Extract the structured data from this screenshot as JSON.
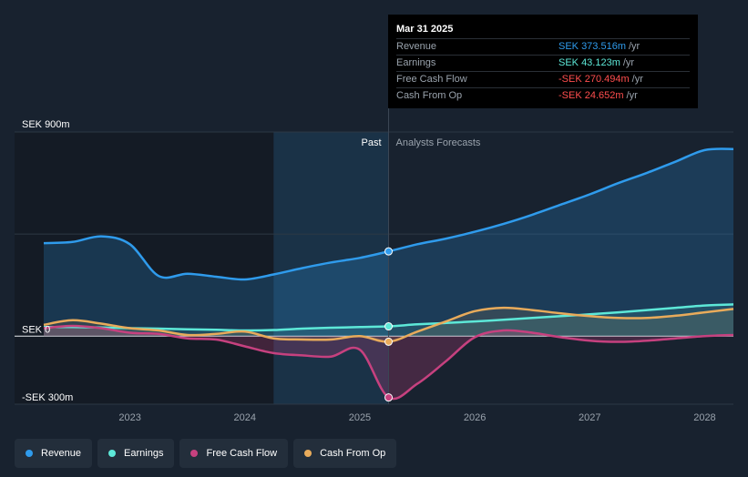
{
  "tooltip": {
    "date": "Mar 31 2025",
    "rows": [
      {
        "label": "Revenue",
        "value": "SEK 373.516m",
        "unit": "/yr",
        "color": "#2f9bec"
      },
      {
        "label": "Earnings",
        "value": "SEK 43.123m",
        "unit": "/yr",
        "color": "#5de8d8"
      },
      {
        "label": "Free Cash Flow",
        "value": "-SEK 270.494m",
        "unit": "/yr",
        "color": "#ff4e4e"
      },
      {
        "label": "Cash From Op",
        "value": "-SEK 24.652m",
        "unit": "/yr",
        "color": "#ff4e4e"
      }
    ]
  },
  "legend": [
    {
      "label": "Revenue",
      "color": "#2f9bec"
    },
    {
      "label": "Earnings",
      "color": "#5de8d8"
    },
    {
      "label": "Free Cash Flow",
      "color": "#c6417f"
    },
    {
      "label": "Cash From Op",
      "color": "#e8ab5b"
    }
  ],
  "chart_data": {
    "type": "line",
    "y_axis_labels": [
      "SEK 900m",
      "SEK 0",
      "-SEK 300m"
    ],
    "y_axis_values": [
      900,
      0,
      -300
    ],
    "ylim": [
      -300,
      900
    ],
    "xlim": [
      2022.25,
      2028.25
    ],
    "x_ticks": [
      "2023",
      "2024",
      "2025",
      "2026",
      "2027",
      "2028"
    ],
    "x_tick_values": [
      2023,
      2024,
      2025,
      2026,
      2027,
      2028
    ],
    "past_label": "Past",
    "forecast_label": "Analysts Forecasts",
    "past_end": 2025.25,
    "highlight_start": 2024.25,
    "series": [
      {
        "name": "Revenue",
        "color": "#2f9bec",
        "points": [
          [
            2022.25,
            410
          ],
          [
            2022.5,
            415
          ],
          [
            2022.75,
            440
          ],
          [
            2023.0,
            405
          ],
          [
            2023.25,
            265
          ],
          [
            2023.5,
            275
          ],
          [
            2023.75,
            262
          ],
          [
            2024.0,
            250
          ],
          [
            2024.25,
            272
          ],
          [
            2024.5,
            300
          ],
          [
            2024.75,
            325
          ],
          [
            2025.0,
            345
          ],
          [
            2025.25,
            373.5
          ],
          [
            2025.5,
            405
          ],
          [
            2025.75,
            430
          ],
          [
            2026.0,
            460
          ],
          [
            2026.25,
            495
          ],
          [
            2026.5,
            535
          ],
          [
            2026.75,
            580
          ],
          [
            2027.0,
            625
          ],
          [
            2027.25,
            675
          ],
          [
            2027.5,
            720
          ],
          [
            2027.75,
            770
          ],
          [
            2028.0,
            820
          ],
          [
            2028.25,
            825
          ]
        ]
      },
      {
        "name": "Earnings",
        "color": "#5de8d8",
        "points": [
          [
            2022.25,
            40
          ],
          [
            2022.5,
            40
          ],
          [
            2022.75,
            38
          ],
          [
            2023.0,
            35
          ],
          [
            2023.25,
            33
          ],
          [
            2023.5,
            30
          ],
          [
            2023.75,
            28
          ],
          [
            2024.0,
            25
          ],
          [
            2024.25,
            27
          ],
          [
            2024.5,
            33
          ],
          [
            2024.75,
            37
          ],
          [
            2025.0,
            40
          ],
          [
            2025.25,
            43.1
          ],
          [
            2025.5,
            52
          ],
          [
            2025.75,
            58
          ],
          [
            2026.0,
            65
          ],
          [
            2026.25,
            72
          ],
          [
            2026.5,
            80
          ],
          [
            2026.75,
            88
          ],
          [
            2027.0,
            96
          ],
          [
            2027.25,
            105
          ],
          [
            2027.5,
            115
          ],
          [
            2027.75,
            125
          ],
          [
            2028.0,
            135
          ],
          [
            2028.25,
            140
          ]
        ]
      },
      {
        "name": "Free Cash Flow",
        "color": "#c6417f",
        "points": [
          [
            2022.25,
            35
          ],
          [
            2022.5,
            45
          ],
          [
            2022.75,
            35
          ],
          [
            2023.0,
            15
          ],
          [
            2023.25,
            10
          ],
          [
            2023.5,
            -10
          ],
          [
            2023.75,
            -15
          ],
          [
            2024.0,
            -45
          ],
          [
            2024.25,
            -75
          ],
          [
            2024.5,
            -85
          ],
          [
            2024.75,
            -90
          ],
          [
            2025.0,
            -60
          ],
          [
            2025.25,
            -270.5
          ],
          [
            2025.5,
            -210
          ],
          [
            2025.75,
            -110
          ],
          [
            2026.0,
            -5
          ],
          [
            2026.25,
            25
          ],
          [
            2026.5,
            15
          ],
          [
            2026.75,
            -5
          ],
          [
            2027.0,
            -20
          ],
          [
            2027.25,
            -25
          ],
          [
            2027.5,
            -20
          ],
          [
            2027.75,
            -10
          ],
          [
            2028.0,
            0
          ],
          [
            2028.25,
            5
          ]
        ]
      },
      {
        "name": "Cash From Op",
        "color": "#e8ab5b",
        "points": [
          [
            2022.25,
            50
          ],
          [
            2022.5,
            70
          ],
          [
            2022.75,
            55
          ],
          [
            2023.0,
            35
          ],
          [
            2023.25,
            25
          ],
          [
            2023.5,
            5
          ],
          [
            2023.75,
            10
          ],
          [
            2024.0,
            20
          ],
          [
            2024.25,
            -10
          ],
          [
            2024.5,
            -15
          ],
          [
            2024.75,
            -15
          ],
          [
            2025.0,
            0
          ],
          [
            2025.25,
            -24.7
          ],
          [
            2025.5,
            20
          ],
          [
            2025.75,
            65
          ],
          [
            2026.0,
            110
          ],
          [
            2026.25,
            125
          ],
          [
            2026.5,
            115
          ],
          [
            2026.75,
            100
          ],
          [
            2027.0,
            88
          ],
          [
            2027.25,
            80
          ],
          [
            2027.5,
            80
          ],
          [
            2027.75,
            90
          ],
          [
            2028.0,
            105
          ],
          [
            2028.25,
            120
          ]
        ]
      }
    ]
  }
}
